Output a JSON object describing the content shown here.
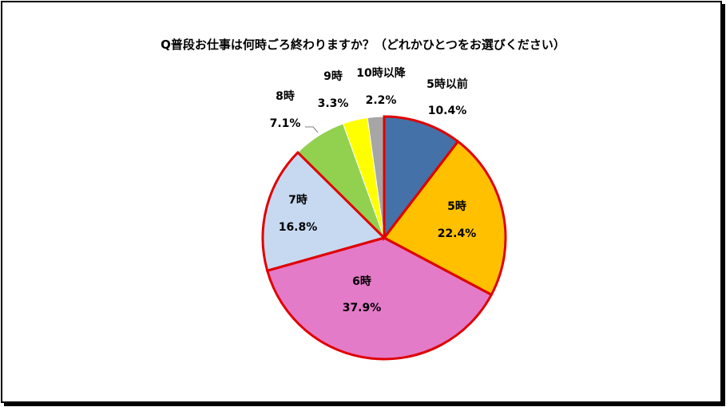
{
  "chart_data": {
    "type": "pie",
    "title": "Q普段お仕事は何時ごろ終わりますか？（どれかひとつをお選びください）",
    "slices": [
      {
        "label": "5時以前",
        "value": 10.4,
        "value_label": "10.4%",
        "color": "#4472A8",
        "highlighted": false
      },
      {
        "label": "5時",
        "value": 22.4,
        "value_label": "22.4%",
        "color": "#FFC000",
        "highlighted": true
      },
      {
        "label": "6時",
        "value": 37.9,
        "value_label": "37.9%",
        "color": "#E37BC8",
        "highlighted": true
      },
      {
        "label": "7時",
        "value": 16.8,
        "value_label": "16.8%",
        "color": "#C6D9F1",
        "highlighted": true
      },
      {
        "label": "8時",
        "value": 7.1,
        "value_label": "7.1%",
        "color": "#92D050",
        "highlighted": false
      },
      {
        "label": "9時",
        "value": 3.3,
        "value_label": "3.3%",
        "color": "#FFFF00",
        "highlighted": false
      },
      {
        "label": "10時以降",
        "value": 2.2,
        "value_label": "2.2%",
        "color": "#A6A6A6",
        "highlighted": false
      }
    ],
    "start_angle_deg": 0,
    "direction": "clockwise",
    "highlight_color": "#E00000"
  }
}
